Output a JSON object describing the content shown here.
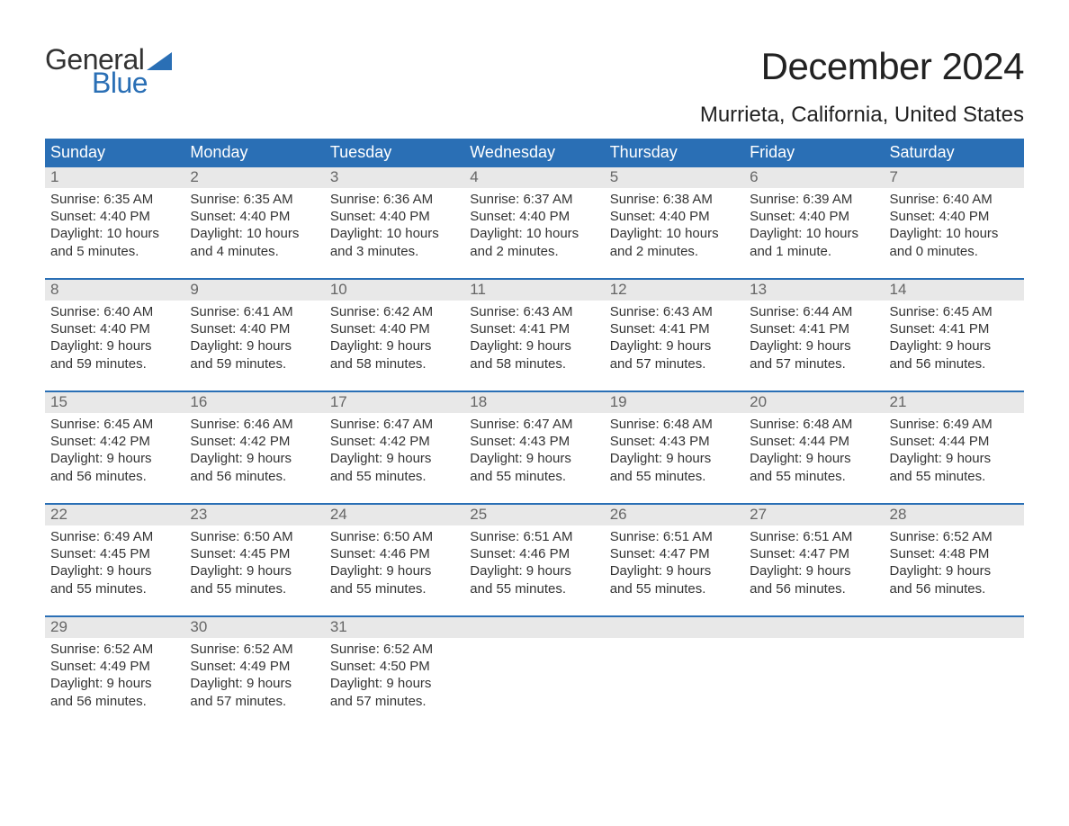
{
  "logo": {
    "word1": "General",
    "word2": "Blue",
    "word1_color": "#333333",
    "word2_color": "#2a6fb5",
    "flag_color": "#2a6fb5"
  },
  "title": "December 2024",
  "location": "Murrieta, California, United States",
  "colors": {
    "header_bg": "#2a6fb5",
    "header_text": "#ffffff",
    "daynum_bg": "#e8e8e8",
    "daynum_text": "#666666",
    "body_text": "#333333",
    "week_divider": "#2a6fb5",
    "page_bg": "#ffffff"
  },
  "typography": {
    "title_fontsize": 42,
    "location_fontsize": 24,
    "weekday_fontsize": 18,
    "daynum_fontsize": 17,
    "body_fontsize": 15
  },
  "weekdays": [
    "Sunday",
    "Monday",
    "Tuesday",
    "Wednesday",
    "Thursday",
    "Friday",
    "Saturday"
  ],
  "weeks": [
    [
      {
        "n": "1",
        "sunrise": "Sunrise: 6:35 AM",
        "sunset": "Sunset: 4:40 PM",
        "d1": "Daylight: 10 hours",
        "d2": "and 5 minutes."
      },
      {
        "n": "2",
        "sunrise": "Sunrise: 6:35 AM",
        "sunset": "Sunset: 4:40 PM",
        "d1": "Daylight: 10 hours",
        "d2": "and 4 minutes."
      },
      {
        "n": "3",
        "sunrise": "Sunrise: 6:36 AM",
        "sunset": "Sunset: 4:40 PM",
        "d1": "Daylight: 10 hours",
        "d2": "and 3 minutes."
      },
      {
        "n": "4",
        "sunrise": "Sunrise: 6:37 AM",
        "sunset": "Sunset: 4:40 PM",
        "d1": "Daylight: 10 hours",
        "d2": "and 2 minutes."
      },
      {
        "n": "5",
        "sunrise": "Sunrise: 6:38 AM",
        "sunset": "Sunset: 4:40 PM",
        "d1": "Daylight: 10 hours",
        "d2": "and 2 minutes."
      },
      {
        "n": "6",
        "sunrise": "Sunrise: 6:39 AM",
        "sunset": "Sunset: 4:40 PM",
        "d1": "Daylight: 10 hours",
        "d2": "and 1 minute."
      },
      {
        "n": "7",
        "sunrise": "Sunrise: 6:40 AM",
        "sunset": "Sunset: 4:40 PM",
        "d1": "Daylight: 10 hours",
        "d2": "and 0 minutes."
      }
    ],
    [
      {
        "n": "8",
        "sunrise": "Sunrise: 6:40 AM",
        "sunset": "Sunset: 4:40 PM",
        "d1": "Daylight: 9 hours",
        "d2": "and 59 minutes."
      },
      {
        "n": "9",
        "sunrise": "Sunrise: 6:41 AM",
        "sunset": "Sunset: 4:40 PM",
        "d1": "Daylight: 9 hours",
        "d2": "and 59 minutes."
      },
      {
        "n": "10",
        "sunrise": "Sunrise: 6:42 AM",
        "sunset": "Sunset: 4:40 PM",
        "d1": "Daylight: 9 hours",
        "d2": "and 58 minutes."
      },
      {
        "n": "11",
        "sunrise": "Sunrise: 6:43 AM",
        "sunset": "Sunset: 4:41 PM",
        "d1": "Daylight: 9 hours",
        "d2": "and 58 minutes."
      },
      {
        "n": "12",
        "sunrise": "Sunrise: 6:43 AM",
        "sunset": "Sunset: 4:41 PM",
        "d1": "Daylight: 9 hours",
        "d2": "and 57 minutes."
      },
      {
        "n": "13",
        "sunrise": "Sunrise: 6:44 AM",
        "sunset": "Sunset: 4:41 PM",
        "d1": "Daylight: 9 hours",
        "d2": "and 57 minutes."
      },
      {
        "n": "14",
        "sunrise": "Sunrise: 6:45 AM",
        "sunset": "Sunset: 4:41 PM",
        "d1": "Daylight: 9 hours",
        "d2": "and 56 minutes."
      }
    ],
    [
      {
        "n": "15",
        "sunrise": "Sunrise: 6:45 AM",
        "sunset": "Sunset: 4:42 PM",
        "d1": "Daylight: 9 hours",
        "d2": "and 56 minutes."
      },
      {
        "n": "16",
        "sunrise": "Sunrise: 6:46 AM",
        "sunset": "Sunset: 4:42 PM",
        "d1": "Daylight: 9 hours",
        "d2": "and 56 minutes."
      },
      {
        "n": "17",
        "sunrise": "Sunrise: 6:47 AM",
        "sunset": "Sunset: 4:42 PM",
        "d1": "Daylight: 9 hours",
        "d2": "and 55 minutes."
      },
      {
        "n": "18",
        "sunrise": "Sunrise: 6:47 AM",
        "sunset": "Sunset: 4:43 PM",
        "d1": "Daylight: 9 hours",
        "d2": "and 55 minutes."
      },
      {
        "n": "19",
        "sunrise": "Sunrise: 6:48 AM",
        "sunset": "Sunset: 4:43 PM",
        "d1": "Daylight: 9 hours",
        "d2": "and 55 minutes."
      },
      {
        "n": "20",
        "sunrise": "Sunrise: 6:48 AM",
        "sunset": "Sunset: 4:44 PM",
        "d1": "Daylight: 9 hours",
        "d2": "and 55 minutes."
      },
      {
        "n": "21",
        "sunrise": "Sunrise: 6:49 AM",
        "sunset": "Sunset: 4:44 PM",
        "d1": "Daylight: 9 hours",
        "d2": "and 55 minutes."
      }
    ],
    [
      {
        "n": "22",
        "sunrise": "Sunrise: 6:49 AM",
        "sunset": "Sunset: 4:45 PM",
        "d1": "Daylight: 9 hours",
        "d2": "and 55 minutes."
      },
      {
        "n": "23",
        "sunrise": "Sunrise: 6:50 AM",
        "sunset": "Sunset: 4:45 PM",
        "d1": "Daylight: 9 hours",
        "d2": "and 55 minutes."
      },
      {
        "n": "24",
        "sunrise": "Sunrise: 6:50 AM",
        "sunset": "Sunset: 4:46 PM",
        "d1": "Daylight: 9 hours",
        "d2": "and 55 minutes."
      },
      {
        "n": "25",
        "sunrise": "Sunrise: 6:51 AM",
        "sunset": "Sunset: 4:46 PM",
        "d1": "Daylight: 9 hours",
        "d2": "and 55 minutes."
      },
      {
        "n": "26",
        "sunrise": "Sunrise: 6:51 AM",
        "sunset": "Sunset: 4:47 PM",
        "d1": "Daylight: 9 hours",
        "d2": "and 55 minutes."
      },
      {
        "n": "27",
        "sunrise": "Sunrise: 6:51 AM",
        "sunset": "Sunset: 4:47 PM",
        "d1": "Daylight: 9 hours",
        "d2": "and 56 minutes."
      },
      {
        "n": "28",
        "sunrise": "Sunrise: 6:52 AM",
        "sunset": "Sunset: 4:48 PM",
        "d1": "Daylight: 9 hours",
        "d2": "and 56 minutes."
      }
    ],
    [
      {
        "n": "29",
        "sunrise": "Sunrise: 6:52 AM",
        "sunset": "Sunset: 4:49 PM",
        "d1": "Daylight: 9 hours",
        "d2": "and 56 minutes."
      },
      {
        "n": "30",
        "sunrise": "Sunrise: 6:52 AM",
        "sunset": "Sunset: 4:49 PM",
        "d1": "Daylight: 9 hours",
        "d2": "and 57 minutes."
      },
      {
        "n": "31",
        "sunrise": "Sunrise: 6:52 AM",
        "sunset": "Sunset: 4:50 PM",
        "d1": "Daylight: 9 hours",
        "d2": "and 57 minutes."
      },
      {
        "n": "",
        "sunrise": "",
        "sunset": "",
        "d1": "",
        "d2": "",
        "empty": true
      },
      {
        "n": "",
        "sunrise": "",
        "sunset": "",
        "d1": "",
        "d2": "",
        "empty": true
      },
      {
        "n": "",
        "sunrise": "",
        "sunset": "",
        "d1": "",
        "d2": "",
        "empty": true
      },
      {
        "n": "",
        "sunrise": "",
        "sunset": "",
        "d1": "",
        "d2": "",
        "empty": true
      }
    ]
  ]
}
